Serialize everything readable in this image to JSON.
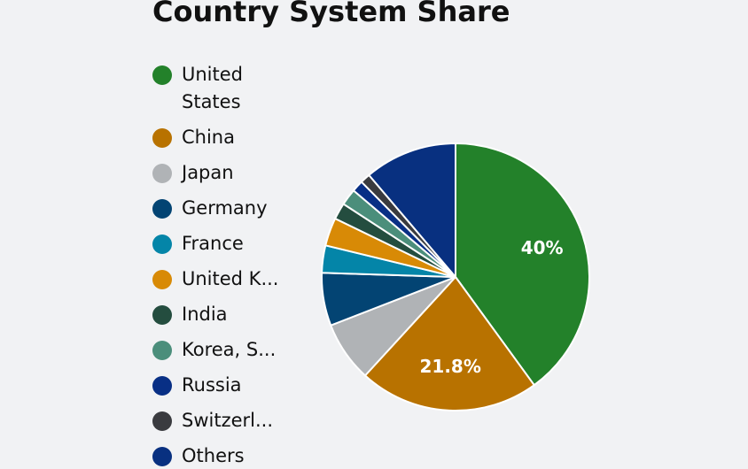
{
  "chart_data": {
    "type": "pie",
    "title": "Country System Share",
    "categories": [
      "United States",
      "China",
      "Japan",
      "Germany",
      "France",
      "United K...",
      "India",
      "Korea, S...",
      "Russia",
      "Switzerl...",
      "Others"
    ],
    "values": [
      40,
      21.8,
      7.3,
      6.4,
      3.3,
      3.4,
      2,
      2,
      1.4,
      1.2,
      11.2
    ],
    "value_labels": [
      "40%",
      "21.8%",
      null,
      null,
      null,
      null,
      null,
      null,
      null,
      null,
      null
    ],
    "colors": [
      "#23812a",
      "#b87200",
      "#b0b3b6",
      "#034473",
      "#0485a8",
      "#d88a06",
      "#244d3f",
      "#4b8e7b",
      "#082f85",
      "#3a3b3f",
      "#083080"
    ]
  }
}
